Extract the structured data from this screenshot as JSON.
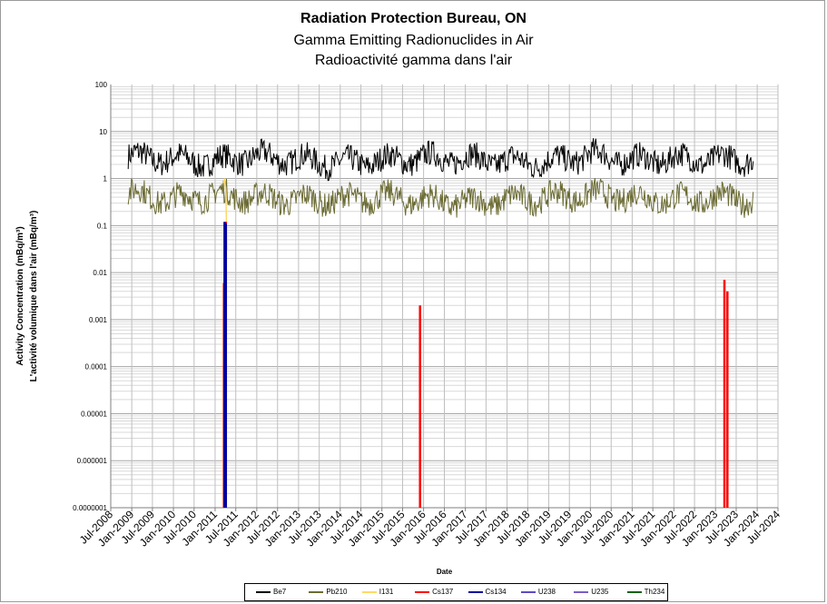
{
  "chart_data": {
    "type": "line",
    "title": "Radiation Protection Bureau, ON",
    "subtitle": "Gamma Emitting Radionuclides in Air",
    "subtitle_fr": "Radioactivité gamma dans l'air",
    "xlabel": "Date",
    "ylabel": "Activity Concentration  (mBq/m³)",
    "ylabel_fr": "L'activité volumique dans l'air (mBq/m³)",
    "y_scale": "log",
    "ylim": [
      1e-07,
      100
    ],
    "y_ticks": [
      "100",
      "10",
      "1",
      "0.1",
      "0.01",
      "0.001",
      "0.0001",
      "0.00001",
      "0.000001",
      "0.0000001"
    ],
    "x_ticks": [
      "Jul-2008",
      "Jan-2009",
      "Jul-2009",
      "Jan-2010",
      "Jul-2010",
      "Jan-2011",
      "Jul-2011",
      "Jan-2012",
      "Jul-2012",
      "Jan-2013",
      "Jul-2013",
      "Jan-2014",
      "Jul-2014",
      "Jan-2015",
      "Jul-2015",
      "Jan-2016",
      "Jul-2016",
      "Jan-2017",
      "Jul-2017",
      "Jan-2018",
      "Jul-2018",
      "Jan-2019",
      "Jul-2019",
      "Jan-2020",
      "Jul-2020",
      "Jan-2021",
      "Jul-2021",
      "Jan-2022",
      "Jul-2022",
      "Jan-2023",
      "Jul-2023",
      "Jan-2024",
      "Jul-2024"
    ],
    "grid": true,
    "legend_position": "bottom",
    "series": [
      {
        "name": "Be7",
        "color": "#000000",
        "pattern": "noisy-band",
        "x": [
          "2008-12",
          "2009-12",
          "2010-12",
          "2011-12",
          "2013-01",
          "2014-01",
          "2015-01",
          "2016-01",
          "2017-01",
          "2018-01",
          "2019-01",
          "2020-01",
          "2021-01",
          "2022-01",
          "2023-01",
          "2023-12"
        ],
        "y": [
          3.0,
          2.6,
          2.2,
          2.9,
          2.5,
          2.1,
          2.4,
          2.7,
          2.6,
          2.3,
          2.2,
          3.2,
          2.4,
          2.6,
          2.5,
          2.7
        ]
      },
      {
        "name": "Pb210",
        "color": "#6b6b33",
        "pattern": "noisy-band",
        "x": [
          "2008-12",
          "2009-12",
          "2010-12",
          "2011-12",
          "2013-01",
          "2014-01",
          "2015-01",
          "2016-01",
          "2017-01",
          "2018-01",
          "2019-01",
          "2020-01",
          "2021-01",
          "2022-01",
          "2023-01",
          "2023-12"
        ],
        "y": [
          0.5,
          0.35,
          0.45,
          0.4,
          0.35,
          0.35,
          0.4,
          0.35,
          0.3,
          0.35,
          0.4,
          0.45,
          0.4,
          0.35,
          0.4,
          0.35
        ]
      },
      {
        "name": "I131",
        "color": "#ffd966",
        "x": [
          "2011-03-15",
          "2011-03-25",
          "2011-04-05",
          "2011-04-15"
        ],
        "y": [
          0.8,
          1.0,
          0.5,
          0.03
        ]
      },
      {
        "name": "Cs137",
        "color": "#ff0000",
        "x": [
          "2011-03-20",
          "2011-04-05",
          "2015-12-01",
          "2023-03-20",
          "2023-04-15"
        ],
        "y": [
          0.006,
          0.12,
          0.002,
          0.007,
          0.004
        ]
      },
      {
        "name": "Cs134",
        "color": "#0000a0",
        "x": [
          "2011-03-25",
          "2011-04-05"
        ],
        "y": [
          0.12,
          0.11
        ]
      },
      {
        "name": "U238",
        "color": "#5b4bc4",
        "x": [],
        "y": []
      },
      {
        "name": "U235",
        "color": "#7a5cc8",
        "x": [],
        "y": []
      },
      {
        "name": "Th234",
        "color": "#006400",
        "x": [],
        "y": []
      }
    ]
  }
}
